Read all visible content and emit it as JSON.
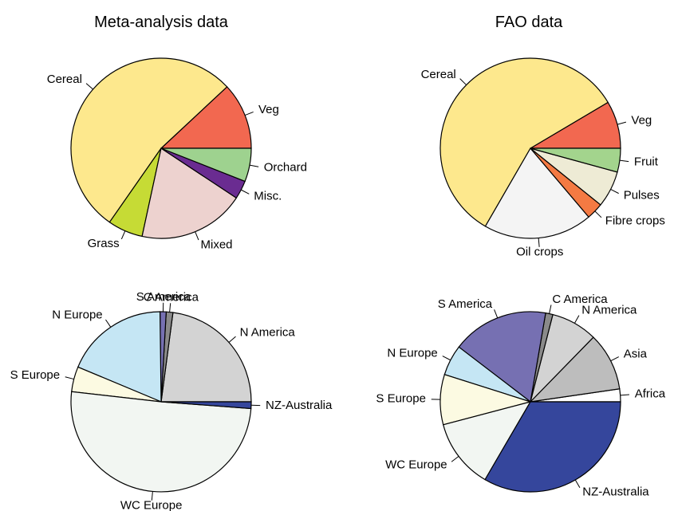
{
  "column_titles": [
    "Meta-analysis data",
    "FAO data"
  ],
  "colors": {
    "cereal": "#FDE88D",
    "grass": "#C6DB35",
    "mixed": "#EDD2CF",
    "misc": "#6A2C91",
    "orchard": "#9ED28F",
    "veg": "#F26850",
    "oil": "#F4F4F4",
    "fibre": "#F47A43",
    "pulses": "#EEEBD5",
    "fruit": "#A3D48D",
    "s_america": "#7670B2",
    "c_america": "#8A8A8A",
    "n_america": "#D3D3D3",
    "asia": "#BDBDBD",
    "africa": "#FFFFFF",
    "nz_australia": "#35469C",
    "wc_europe": "#F2F6F2",
    "s_europe": "#FCFAE2",
    "n_europe": "#C5E6F4"
  },
  "chart_data": [
    {
      "type": "pie",
      "title": "Meta-analysis data",
      "labels": [
        "Veg",
        "Cereal",
        "Grass",
        "Mixed",
        "Misc.",
        "Orchard"
      ],
      "values": [
        11.2,
        50.0,
        5.9,
        17.9,
        3.1,
        5.6
      ],
      "colors": [
        "#F26850",
        "#FDE88D",
        "#C6DB35",
        "#EDD2CF",
        "#6A2C91",
        "#9ED28F"
      ],
      "start_angle_deg": 0,
      "direction": "counterclockwise"
    },
    {
      "type": "pie",
      "title": "FAO data",
      "labels": [
        "Veg",
        "Cereal",
        "Oil crops",
        "Fibre crops",
        "Pulses",
        "Fruit"
      ],
      "values": [
        8.2,
        56.0,
        18.8,
        2.9,
        6.3,
        4.1
      ],
      "colors": [
        "#F26850",
        "#FDE88D",
        "#F4F4F4",
        "#F47A43",
        "#EEEBD5",
        "#A3D48D"
      ],
      "start_angle_deg": 0,
      "direction": "counterclockwise"
    },
    {
      "type": "pie",
      "labels": [
        "N America",
        "C America",
        "S America",
        "N Europe",
        "S Europe",
        "WC Europe",
        "NZ-Australia"
      ],
      "values": [
        22.9,
        1.2,
        1.1,
        18.5,
        4.5,
        50.6,
        1.2
      ],
      "colors": [
        "#D3D3D3",
        "#8A8A8A",
        "#7670B2",
        "#C5E6F4",
        "#FCFAE2",
        "#F2F6F2",
        "#35469C"
      ],
      "start_angle_deg": 0,
      "direction": "counterclockwise"
    },
    {
      "type": "pie",
      "labels": [
        "Africa",
        "Asia",
        "N America",
        "C America",
        "S America",
        "N Europe",
        "S Europe",
        "WC Europe",
        "NZ-Australia"
      ],
      "values": [
        2.3,
        10.4,
        8.3,
        1.3,
        17.3,
        5.5,
        9.0,
        12.5,
        33.4
      ],
      "colors": [
        "#FFFFFF",
        "#BDBDBD",
        "#D3D3D3",
        "#8A8A8A",
        "#7670B2",
        "#C5E6F4",
        "#FCFAE2",
        "#F2F6F2",
        "#35469C"
      ],
      "start_angle_deg": 0,
      "direction": "counterclockwise"
    }
  ]
}
